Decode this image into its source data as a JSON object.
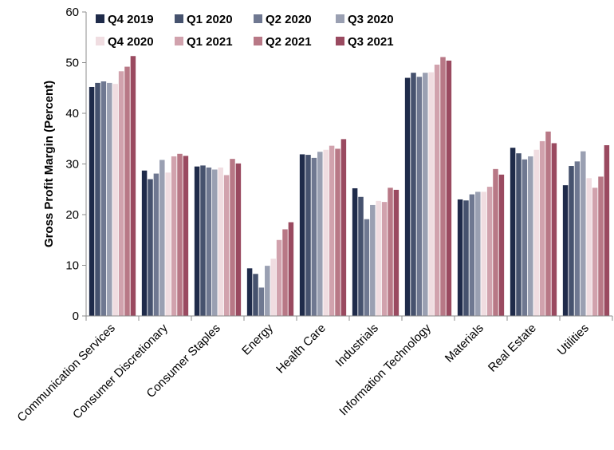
{
  "chart_data": {
    "type": "bar",
    "title": "",
    "xlabel": "",
    "ylabel": "Gross Profit Margin (Percent)",
    "ylim": [
      0,
      60
    ],
    "yticks": [
      "0",
      "10",
      "20",
      "30",
      "40",
      "50",
      "60"
    ],
    "grid": false,
    "legend_position": "top-left",
    "categories": [
      "Communication Services",
      "Consumer Discretionary",
      "Consumer Staples",
      "Energy",
      "Health Care",
      "Industrials",
      "Information Technology",
      "Materials",
      "Real Estate",
      "Utilities"
    ],
    "series": [
      {
        "name": "Q4 2019",
        "color": "#1f2b4a",
        "values": [
          45.2,
          28.7,
          29.5,
          9.4,
          31.9,
          25.2,
          47.0,
          23.0,
          33.2,
          25.8
        ]
      },
      {
        "name": "Q1 2020",
        "color": "#46526e",
        "values": [
          46.0,
          27.0,
          29.7,
          8.3,
          31.8,
          23.5,
          48.0,
          22.8,
          32.1,
          29.6
        ]
      },
      {
        "name": "Q2 2020",
        "color": "#6f7891",
        "values": [
          46.3,
          28.1,
          29.3,
          5.6,
          31.2,
          19.1,
          47.2,
          24.0,
          30.9,
          30.5
        ]
      },
      {
        "name": "Q3 2020",
        "color": "#9aa0b2",
        "values": [
          46.0,
          30.8,
          28.9,
          9.9,
          32.4,
          21.9,
          48.0,
          24.5,
          31.5,
          32.5
        ]
      },
      {
        "name": "Q4 2020",
        "color": "#f0dde1",
        "values": [
          45.8,
          28.3,
          29.3,
          11.3,
          32.8,
          22.7,
          48.1,
          24.5,
          32.8,
          27.2
        ]
      },
      {
        "name": "Q1 2021",
        "color": "#d1a2ad",
        "values": [
          48.3,
          31.5,
          27.8,
          15.0,
          33.6,
          22.5,
          49.6,
          25.5,
          34.5,
          25.3
        ]
      },
      {
        "name": "Q2 2021",
        "color": "#b87886",
        "values": [
          49.2,
          32.0,
          31.0,
          17.1,
          33.0,
          25.3,
          51.1,
          29.0,
          36.4,
          27.5
        ]
      },
      {
        "name": "Q3 2021",
        "color": "#9a4a60",
        "values": [
          51.3,
          31.6,
          30.1,
          18.5,
          34.9,
          24.9,
          50.4,
          27.9,
          34.1,
          33.7
        ]
      }
    ]
  }
}
